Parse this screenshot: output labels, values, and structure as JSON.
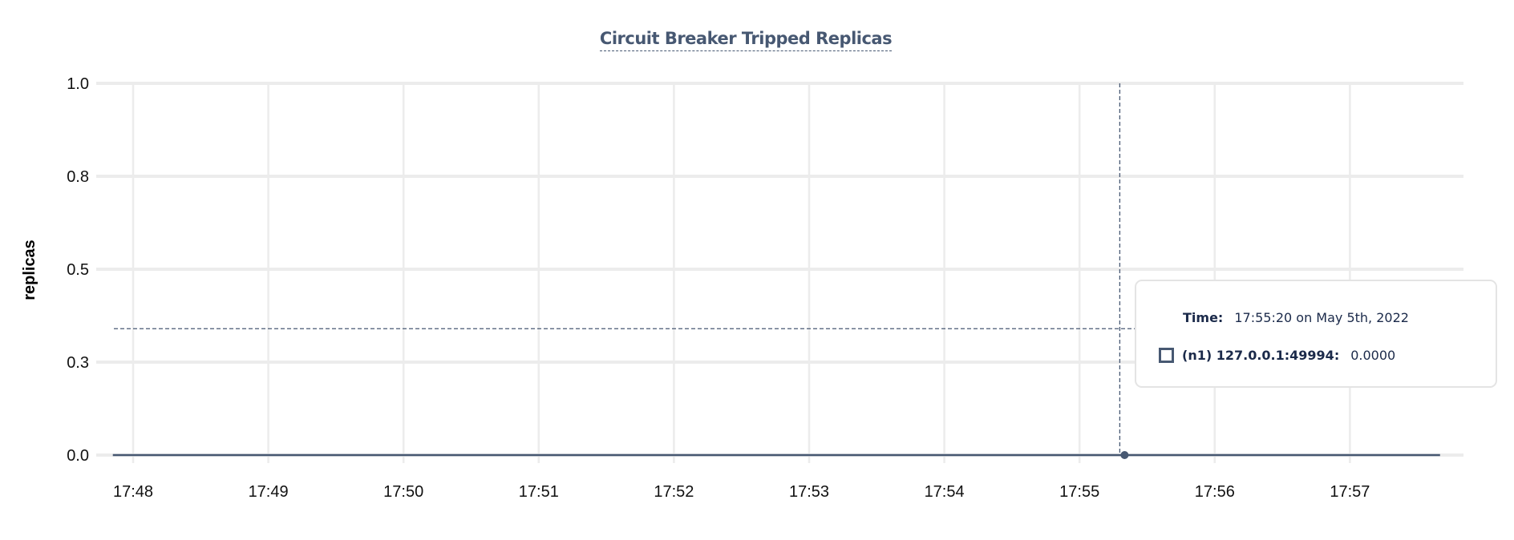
{
  "chart_data": {
    "type": "line",
    "title": "Circuit Breaker Tripped Replicas",
    "ylabel": "replicas",
    "xlabel": "",
    "ylim": [
      0,
      1
    ],
    "y_ticks": [
      0,
      0.25,
      0.5,
      0.75,
      1.0
    ],
    "y_tick_labels": [
      "0.0",
      "0.3",
      "0.5",
      "0.8",
      "1.0"
    ],
    "x_range": [
      "17:47:51",
      "17:57:40"
    ],
    "x_ticks": [
      "17:48",
      "17:49",
      "17:50",
      "17:51",
      "17:52",
      "17:53",
      "17:54",
      "17:55",
      "17:56",
      "17:57"
    ],
    "grid": true,
    "series": [
      {
        "name": "(n1) 127.0.0.1:49994",
        "color": "#475872",
        "x": [
          "17:47:51",
          "17:57:40"
        ],
        "y": [
          0,
          0
        ]
      }
    ],
    "hover": {
      "time": "17:55:20",
      "value": 0,
      "crosshair_y": 0.34
    }
  },
  "tooltip": {
    "time_label": "Time:",
    "time_value": "17:55:20 on May 5th, 2022",
    "series_label": "(n1) 127.0.0.1:49994:",
    "series_value": "0.0000"
  }
}
